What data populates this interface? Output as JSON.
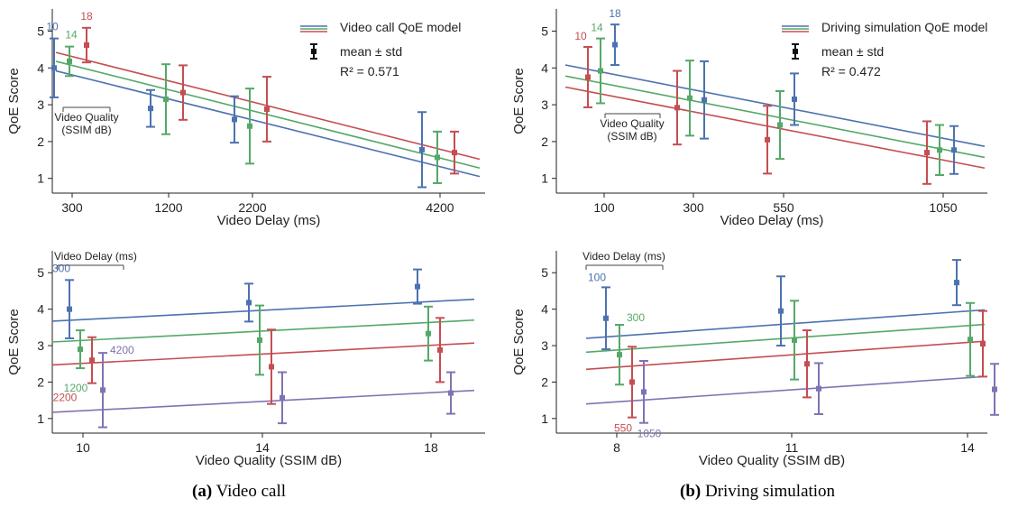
{
  "colors": {
    "blue": "#4c72b0",
    "green": "#55a868",
    "red": "#c44e52",
    "purple": "#8172b3"
  },
  "captions": {
    "a_tag": "(a)",
    "a_text": "Video call",
    "b_tag": "(b)",
    "b_text": "Driving simulation"
  },
  "chart_data": [
    {
      "type": "scatter",
      "panel": "a-top",
      "xlabel": "Video Delay (ms)",
      "ylabel": "QoE Score",
      "xticks": [
        300,
        1200,
        2200,
        4200
      ],
      "yticks": [
        1,
        2,
        3,
        4,
        5
      ],
      "ylim": [
        0.6,
        5.6
      ],
      "legend": {
        "position": "top-right",
        "model_label": "Video call QoE model",
        "errbar_label": "mean ± std",
        "r2": "R² = 0.571"
      },
      "group_label": {
        "title": "Video Quality",
        "subtitle": "(SSIM dB)"
      },
      "series": [
        {
          "name": "10",
          "color": "blue",
          "line": [
            3.92,
            1.05
          ],
          "points": [
            [
              300,
              4.0,
              0.8
            ],
            [
              1200,
              2.9,
              0.5
            ],
            [
              2200,
              2.6,
              0.63
            ],
            [
              4200,
              1.78,
              1.02
            ]
          ]
        },
        {
          "name": "14",
          "color": "green",
          "line": [
            4.18,
            1.28
          ],
          "points": [
            [
              300,
              4.18,
              0.4
            ],
            [
              1200,
              3.15,
              0.95
            ],
            [
              2200,
              2.42,
              1.02
            ],
            [
              4200,
              1.57,
              0.7
            ]
          ]
        },
        {
          "name": "18",
          "color": "red",
          "line": [
            4.42,
            1.52
          ],
          "points": [
            [
              300,
              4.62,
              0.47
            ],
            [
              1200,
              3.33,
              0.74
            ],
            [
              2200,
              2.88,
              0.88
            ],
            [
              4200,
              1.7,
              0.57
            ]
          ]
        }
      ]
    },
    {
      "type": "scatter",
      "panel": "b-top",
      "xlabel": "Video Delay (ms)",
      "ylabel": "QoE Score",
      "xticks": [
        100,
        300,
        550,
        1050
      ],
      "yticks": [
        1,
        2,
        3,
        4,
        5
      ],
      "ylim": [
        0.6,
        5.6
      ],
      "legend": {
        "position": "top-right",
        "model_label": "Driving simulation QoE model",
        "errbar_label": "mean ± std",
        "r2": "R² = 0.472"
      },
      "group_label": {
        "title": "Video Quality",
        "subtitle": "(SSIM dB)"
      },
      "series": [
        {
          "name": "10",
          "color": "red",
          "line": [
            3.48,
            1.28
          ],
          "points": [
            [
              100,
              3.75,
              0.82
            ],
            [
              300,
              2.92,
              1.0
            ],
            [
              550,
              2.05,
              0.92
            ],
            [
              1050,
              1.7,
              0.85
            ]
          ]
        },
        {
          "name": "14",
          "color": "green",
          "line": [
            3.78,
            1.57
          ],
          "points": [
            [
              100,
              3.92,
              0.88
            ],
            [
              300,
              3.18,
              1.02
            ],
            [
              550,
              2.45,
              0.92
            ],
            [
              1050,
              1.77,
              0.68
            ]
          ]
        },
        {
          "name": "18",
          "color": "blue",
          "line": [
            4.08,
            1.87
          ],
          "points": [
            [
              100,
              4.63,
              0.55
            ],
            [
              300,
              3.13,
              1.05
            ],
            [
              550,
              3.15,
              0.7
            ],
            [
              1050,
              1.77,
              0.65
            ]
          ]
        }
      ]
    },
    {
      "type": "scatter",
      "panel": "a-bottom",
      "xlabel": "Video Quality (SSIM dB)",
      "ylabel": "QoE Score",
      "xticks": [
        10,
        14,
        18
      ],
      "yticks": [
        1,
        2,
        3,
        4,
        5
      ],
      "ylim": [
        0.6,
        5.6
      ],
      "group_label": {
        "title": "Video Delay (ms)"
      },
      "series": [
        {
          "name": "300",
          "color": "blue",
          "line": [
            3.67,
            4.27
          ],
          "points": [
            [
              10,
              4.0,
              0.8
            ],
            [
              14,
              4.18,
              0.52
            ],
            [
              18,
              4.62,
              0.47
            ]
          ]
        },
        {
          "name": "1200",
          "color": "green",
          "line": [
            3.1,
            3.7
          ],
          "points": [
            [
              10,
              2.9,
              0.52
            ],
            [
              14,
              3.15,
              0.95
            ],
            [
              18,
              3.33,
              0.74
            ]
          ]
        },
        {
          "name": "2200",
          "color": "red",
          "line": [
            2.47,
            3.07
          ],
          "points": [
            [
              10,
              2.6,
              0.63
            ],
            [
              14,
              2.42,
              1.02
            ],
            [
              18,
              2.88,
              0.88
            ]
          ]
        },
        {
          "name": "4200",
          "color": "purple",
          "line": [
            1.17,
            1.77
          ],
          "points": [
            [
              10,
              1.78,
              1.02
            ],
            [
              14,
              1.57,
              0.7
            ],
            [
              18,
              1.7,
              0.57
            ]
          ]
        }
      ]
    },
    {
      "type": "scatter",
      "panel": "b-bottom",
      "xlabel": "Video Quality (SSIM dB)",
      "ylabel": "QoE Score",
      "xticks": [
        8,
        11,
        14
      ],
      "yticks": [
        1,
        2,
        3,
        4,
        5
      ],
      "ylim": [
        0.6,
        5.6
      ],
      "group_label": {
        "title": "Video Delay (ms)"
      },
      "series": [
        {
          "name": "100",
          "color": "blue",
          "line": [
            3.2,
            3.98
          ],
          "points": [
            [
              8,
              3.75,
              0.85
            ],
            [
              11,
              3.95,
              0.95
            ],
            [
              14,
              4.73,
              0.62
            ]
          ]
        },
        {
          "name": "300",
          "color": "green",
          "line": [
            2.82,
            3.58
          ],
          "points": [
            [
              8,
              2.75,
              0.82
            ],
            [
              11,
              3.15,
              1.08
            ],
            [
              14,
              3.17,
              1.0
            ]
          ]
        },
        {
          "name": "550",
          "color": "red",
          "line": [
            2.35,
            3.12
          ],
          "points": [
            [
              8,
              2.0,
              0.97
            ],
            [
              11,
              2.5,
              0.92
            ],
            [
              14,
              3.05,
              0.9
            ]
          ]
        },
        {
          "name": "1050",
          "color": "purple",
          "line": [
            1.4,
            2.15
          ],
          "points": [
            [
              8,
              1.73,
              0.85
            ],
            [
              11,
              1.82,
              0.7
            ],
            [
              14,
              1.8,
              0.7
            ]
          ]
        }
      ]
    }
  ]
}
